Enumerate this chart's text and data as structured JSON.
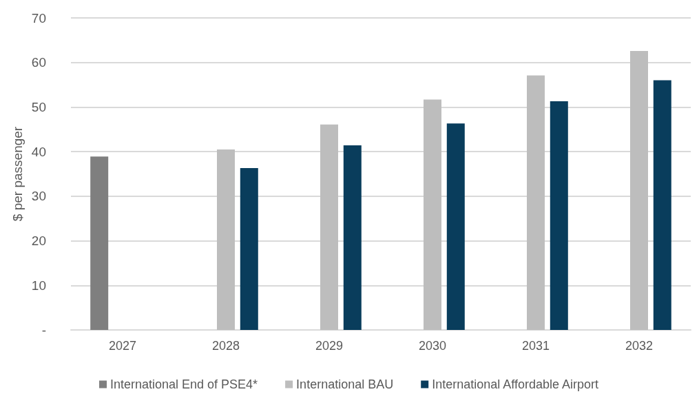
{
  "chart_data": {
    "type": "bar",
    "ylabel": "$ per passenger",
    "categories": [
      "2027",
      "2028",
      "2029",
      "2030",
      "2031",
      "2032"
    ],
    "series": [
      {
        "name": "International End of PSE4*",
        "color": "#7f7f7f",
        "values": [
          38.9,
          null,
          null,
          null,
          null,
          null
        ]
      },
      {
        "name": "International BAU",
        "color": "#bdbdbd",
        "values": [
          null,
          40.5,
          46.1,
          51.7,
          57.1,
          62.6
        ]
      },
      {
        "name": "International Affordable Airport",
        "color": "#093d5c",
        "values": [
          null,
          36.3,
          41.4,
          46.3,
          51.3,
          56.0
        ]
      }
    ],
    "ylim": [
      0,
      70
    ],
    "yticks": [
      {
        "value": 0,
        "label": "-"
      },
      10,
      20,
      30,
      40,
      50,
      60,
      70
    ],
    "grid": "y",
    "legend": "bottom"
  }
}
